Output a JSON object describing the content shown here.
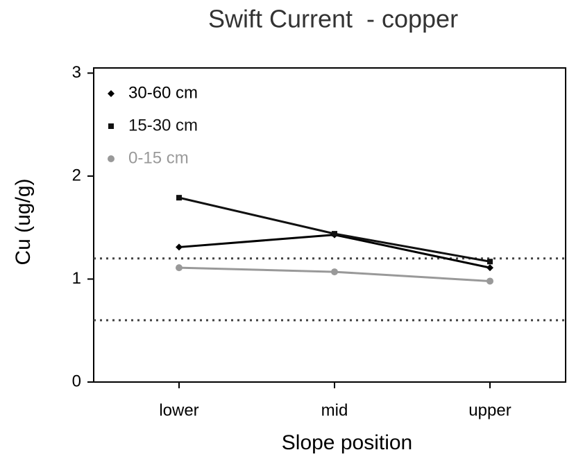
{
  "chart_data": {
    "type": "line",
    "title": "Swift Current  - copper",
    "x_label": "Slope position",
    "y_label": "Cu (ug/g)",
    "categories": [
      "lower",
      "mid",
      "upper"
    ],
    "series": [
      {
        "name": "30-60 cm",
        "color": "#000000",
        "marker": "diamond",
        "values": [
          1.31,
          1.43,
          1.11
        ]
      },
      {
        "name": "15-30 cm",
        "color": "#111111",
        "marker": "square",
        "values": [
          1.79,
          1.44,
          1.17
        ]
      },
      {
        "name": "0-15 cm",
        "color": "#999999",
        "marker": "circle",
        "values": [
          1.11,
          1.07,
          0.98
        ]
      }
    ],
    "reference_lines": [
      1.2,
      0.6
    ],
    "ylim": [
      0,
      3.05
    ],
    "yticks": [
      0,
      1,
      2,
      3
    ],
    "legend": "upper left",
    "grid": false
  }
}
